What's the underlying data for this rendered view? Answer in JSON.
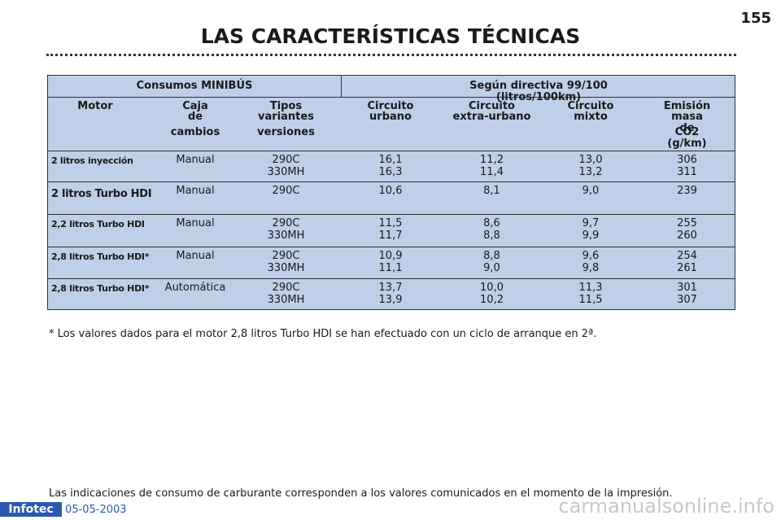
{
  "page_number": "155",
  "title": "LAS CARACTERÍSTICAS TÉCNICAS",
  "table": {
    "group_headers": [
      "Consumos MINIBÚS",
      "Según directiva 99/100 (litros/100km)"
    ],
    "column_headers": [
      [
        "Motor"
      ],
      [
        "Caja",
        "de",
        "cambios"
      ],
      [
        "Tipos",
        "variantes",
        "versiones"
      ],
      [
        "Circuito",
        "urbano"
      ],
      [
        "Circuito",
        "extra-urbano"
      ],
      [
        "Circuito",
        "mixto"
      ],
      [
        "Emisión",
        "masa de",
        "CO2 (g/km)"
      ]
    ],
    "rows": [
      [
        [
          "2 litros inyección"
        ],
        [
          "Manual"
        ],
        [
          "290C",
          "330MH"
        ],
        [
          "16,1",
          "16,3"
        ],
        [
          "11,2",
          "11,4"
        ],
        [
          "13,0",
          "13,2"
        ],
        [
          "306",
          "311"
        ]
      ],
      [
        [
          "2 litros Turbo HDI"
        ],
        [
          "Manual"
        ],
        [
          "290C"
        ],
        [
          "10,6"
        ],
        [
          "8,1"
        ],
        [
          "9,0"
        ],
        [
          "239"
        ]
      ],
      [
        [
          "2,2 litros Turbo HDI"
        ],
        [
          "Manual"
        ],
        [
          "290C",
          "330MH"
        ],
        [
          "11,5",
          "11,7"
        ],
        [
          "8,6",
          "8,8"
        ],
        [
          "9,7",
          "9,9"
        ],
        [
          "255",
          "260"
        ]
      ],
      [
        [
          "2,8 litros Turbo HDI*"
        ],
        [
          "Manual"
        ],
        [
          "290C",
          "330MH"
        ],
        [
          "10,9",
          "11,1"
        ],
        [
          "8,8",
          "9,0"
        ],
        [
          "9,6",
          "9,8"
        ],
        [
          "254",
          "261"
        ]
      ],
      [
        [
          "2,8 litros Turbo HDI*"
        ],
        [
          "Automática"
        ],
        [
          "290C",
          "330MH"
        ],
        [
          "13,7",
          "13,9"
        ],
        [
          "10,0",
          "10,2"
        ],
        [
          "11,3",
          "11,5"
        ],
        [
          "301",
          "307"
        ]
      ]
    ]
  },
  "footnote": "* Los valores dados para el motor 2,8 litros Turbo HDI se han efectuado con un ciclo de arranque en 2ª.",
  "bottom_note": "Las indicaciones de consumo de carburante corresponden a los valores comunicados en el momento de la impresión.",
  "footer": {
    "logo": "Infotec",
    "date": "05-05-2003"
  },
  "watermark": "carmanualsonline.info"
}
